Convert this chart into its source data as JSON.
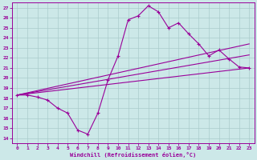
{
  "xlabel": "Windchill (Refroidissement éolien,°C)",
  "xlim": [
    -0.5,
    23.5
  ],
  "ylim": [
    13.5,
    27.5
  ],
  "yticks": [
    14,
    15,
    16,
    17,
    18,
    19,
    20,
    21,
    22,
    23,
    24,
    25,
    26,
    27
  ],
  "xticks": [
    0,
    1,
    2,
    3,
    4,
    5,
    6,
    7,
    8,
    9,
    10,
    11,
    12,
    13,
    14,
    15,
    16,
    17,
    18,
    19,
    20,
    21,
    22,
    23
  ],
  "bg_color": "#cce8e8",
  "grid_color": "#aacccc",
  "line_color": "#990099",
  "line1_x": [
    0,
    1,
    2,
    3,
    4,
    5,
    6,
    7,
    8,
    9,
    10,
    11,
    12,
    13,
    14,
    15,
    16,
    17,
    18,
    19,
    20,
    21,
    22,
    23
  ],
  "line1_y": [
    18.3,
    18.3,
    18.1,
    17.8,
    17.0,
    16.5,
    14.8,
    14.4,
    16.5,
    19.8,
    22.2,
    25.8,
    26.2,
    27.2,
    26.6,
    25.0,
    25.5,
    24.4,
    23.4,
    22.2,
    22.8,
    21.9,
    21.1,
    21.0
  ],
  "line2_x": [
    0,
    23
  ],
  "line2_y": [
    18.3,
    23.4
  ],
  "line3_x": [
    0,
    23
  ],
  "line3_y": [
    18.3,
    22.3
  ],
  "line4_x": [
    0,
    23
  ],
  "line4_y": [
    18.3,
    21.0
  ]
}
